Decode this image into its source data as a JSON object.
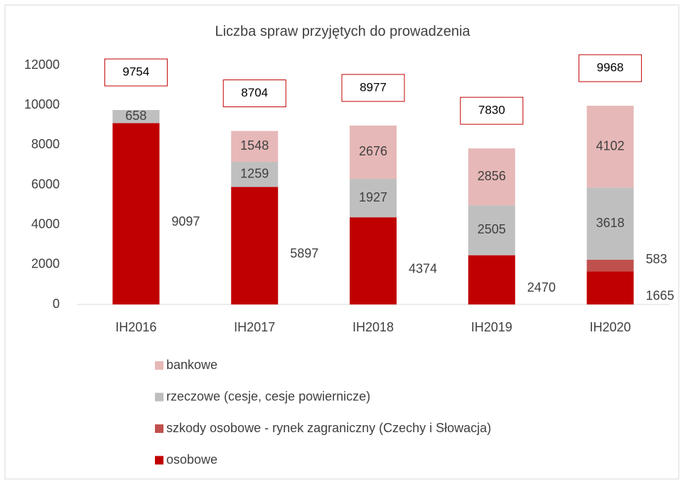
{
  "chart_data": {
    "type": "stacked_bar",
    "title": "Liczba spraw przyjętych do prowadzenia",
    "categories": [
      "IH2016",
      "IH2017",
      "IH2018",
      "IH2019",
      "IH2020"
    ],
    "series": [
      {
        "name": "osobowe",
        "color": "#c00000",
        "values": [
          9097,
          5897,
          4374,
          2470,
          1665
        ]
      },
      {
        "name": "szkody osobowe - rynek zagraniczny (Czechy i Słowacja)",
        "color": "#c0504d",
        "values": [
          null,
          null,
          null,
          null,
          583
        ]
      },
      {
        "name": "rzeczowe (cesje, cesje powiernicze)",
        "color": "#bfbfbf",
        "values": [
          658,
          1259,
          1927,
          2505,
          3618
        ]
      },
      {
        "name": "bankowe",
        "color": "#e6b8b7",
        "values": [
          null,
          1548,
          2676,
          2856,
          4102
        ]
      }
    ],
    "totals": [
      9754,
      8704,
      8977,
      7830,
      9968
    ],
    "ylim": [
      0,
      12000
    ],
    "yticks": [
      0,
      2000,
      4000,
      6000,
      8000,
      10000,
      12000
    ],
    "grid": false
  }
}
